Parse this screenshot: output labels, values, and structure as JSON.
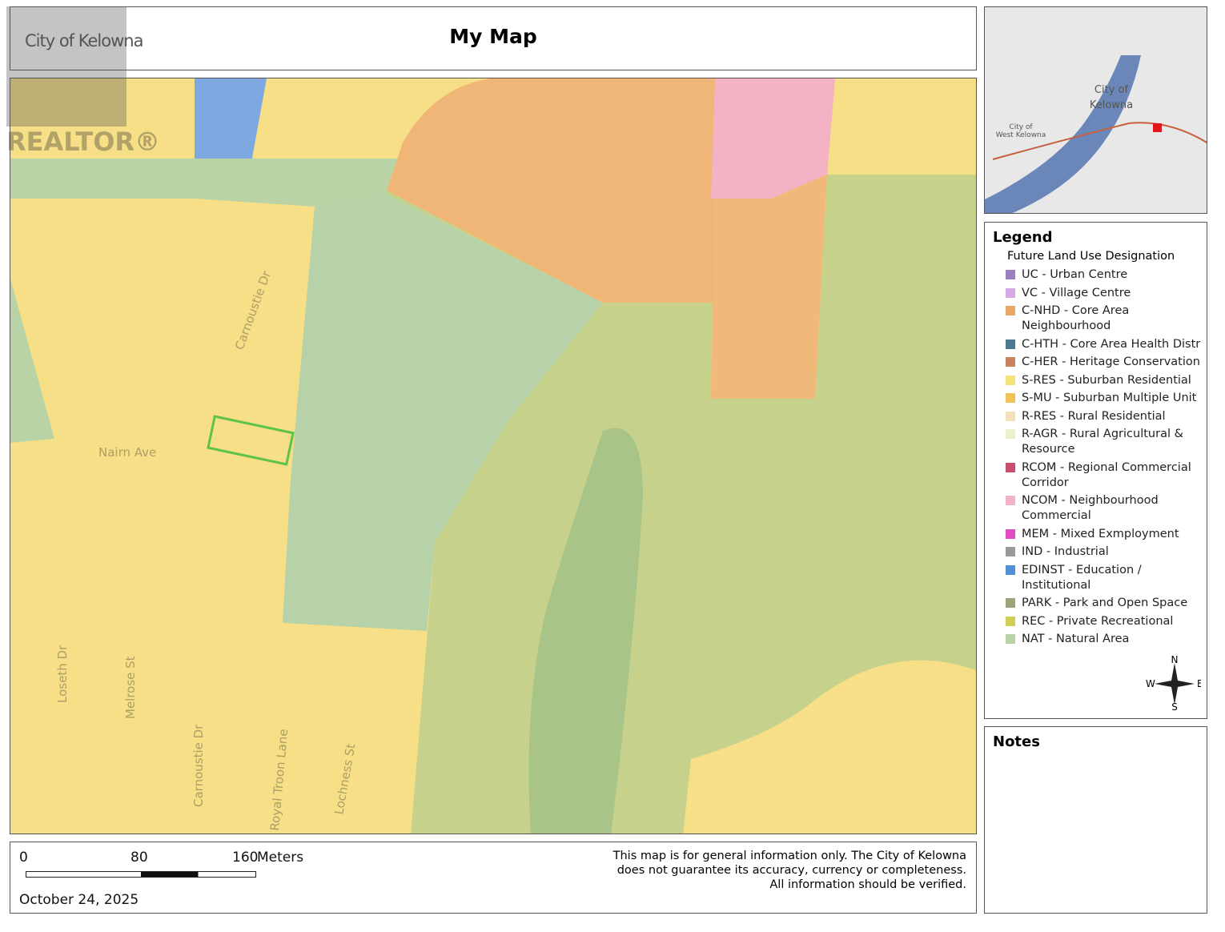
{
  "header": {
    "logo": "City of Kelowna",
    "title": "My Map",
    "watermark": "REALTOR®"
  },
  "inset": {
    "labels": [
      "City of",
      "Kelowna",
      "City of",
      "West Kelowna"
    ]
  },
  "map": {
    "streets": [
      "Nairn Ave",
      "Carnoustie Dr",
      "Loseth Dr",
      "Melrose St",
      "Carnoustie Dr",
      "Royal Troon Lane",
      "Lochness St"
    ]
  },
  "legend": {
    "title": "Legend",
    "subtitle": "Future Land Use Designation",
    "items": [
      {
        "label": "UC - Urban Centre",
        "color": "#9b7fc0"
      },
      {
        "label": "VC - Village Centre",
        "color": "#d7a8e6"
      },
      {
        "label": "C-NHD - Core Area Neighbourhood",
        "color": "#e8a866"
      },
      {
        "label": "C-HTH - Core Area Health Distr",
        "color": "#4d7891"
      },
      {
        "label": "C-HER - Heritage Conservation",
        "color": "#c9825e"
      },
      {
        "label": "S-RES - Suburban Residential",
        "color": "#f5e07a"
      },
      {
        "label": "S-MU - Suburban Multiple Unit",
        "color": "#f1c15a"
      },
      {
        "label": "R-RES - Rural Residential",
        "color": "#f3e0b8"
      },
      {
        "label": "R-AGR - Rural Agricultural & Resource",
        "color": "#ecf0cc"
      },
      {
        "label": "RCOM - Regional Commercial Corridor",
        "color": "#c94d6c"
      },
      {
        "label": "NCOM - Neighbourhood Commercial",
        "color": "#f2b4c4"
      },
      {
        "label": "MEM - Mixed Exmployment",
        "color": "#e04cc4"
      },
      {
        "label": "IND - Industrial",
        "color": "#9a9a9a"
      },
      {
        "label": "EDINST - Education / Institutional",
        "color": "#4f90d8"
      },
      {
        "label": "PARK - Park and Open Space",
        "color": "#9aa57a"
      },
      {
        "label": "REC - Private Recreational",
        "color": "#cfcf55"
      },
      {
        "label": "NAT - Natural Area",
        "color": "#b9d3a6"
      }
    ],
    "compass": {
      "n": "N",
      "s": "S",
      "e": "E",
      "w": "W"
    }
  },
  "notes": {
    "title": "Notes"
  },
  "footer": {
    "scale": {
      "ticks": [
        "0",
        "80",
        "160"
      ],
      "unit": "Meters"
    },
    "disclaimer": [
      "This map is for general information only. The City of Kelowna",
      "does not guarantee its accuracy, currency or completeness.",
      "All information should be verified."
    ],
    "date": "October 24, 2025"
  }
}
